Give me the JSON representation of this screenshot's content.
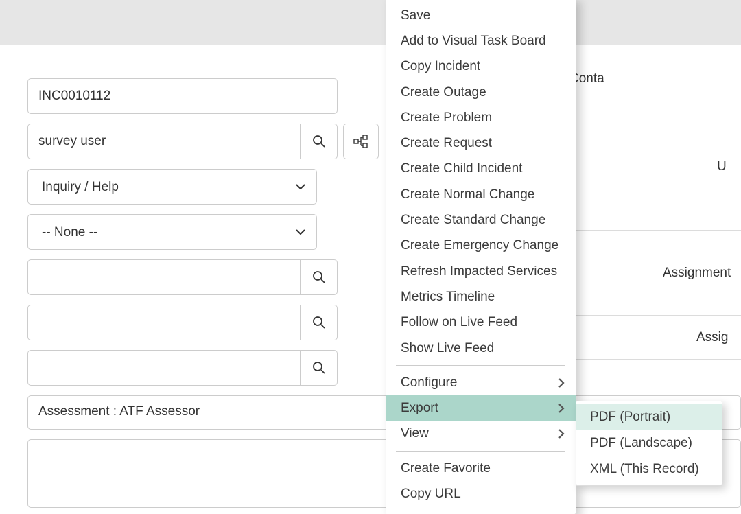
{
  "form": {
    "number": "INC0010112",
    "caller": "survey user",
    "category": "Inquiry / Help",
    "subcategory": "-- None --",
    "businessService": "",
    "configurationItem": "",
    "thirdLookup": "",
    "assessment": "Assessment :  ATF Assessor",
    "shortDescription": ""
  },
  "rhsLabels": {
    "contact": "Conta",
    "u": "U",
    "assignmentGroup": "Assignment",
    "assignedTo": "Assig"
  },
  "contextMenu": {
    "highlight_bg": "#abd6ca",
    "items_top": [
      "Save",
      "Add to Visual Task Board",
      "Copy Incident",
      "Create Outage",
      "Create Problem",
      "Create Request",
      "Create Child Incident",
      "Create Normal Change",
      "Create Standard Change",
      "Create Emergency Change",
      "Refresh Impacted Services",
      "Metrics Timeline",
      "Follow on Live Feed",
      "Show Live Feed"
    ],
    "items_mid": [
      {
        "label": "Configure",
        "sub": true,
        "hl": false
      },
      {
        "label": "Export",
        "sub": true,
        "hl": true
      },
      {
        "label": "View",
        "sub": true,
        "hl": false
      }
    ],
    "items_bot": [
      "Create Favorite",
      "Copy URL"
    ]
  },
  "exportSubmenu": {
    "highlight_bg": "#dcefe9",
    "items": [
      {
        "label": "PDF (Portrait)",
        "hl": true
      },
      {
        "label": "PDF (Landscape)",
        "hl": false
      },
      {
        "label": "XML (This Record)",
        "hl": false
      }
    ]
  }
}
